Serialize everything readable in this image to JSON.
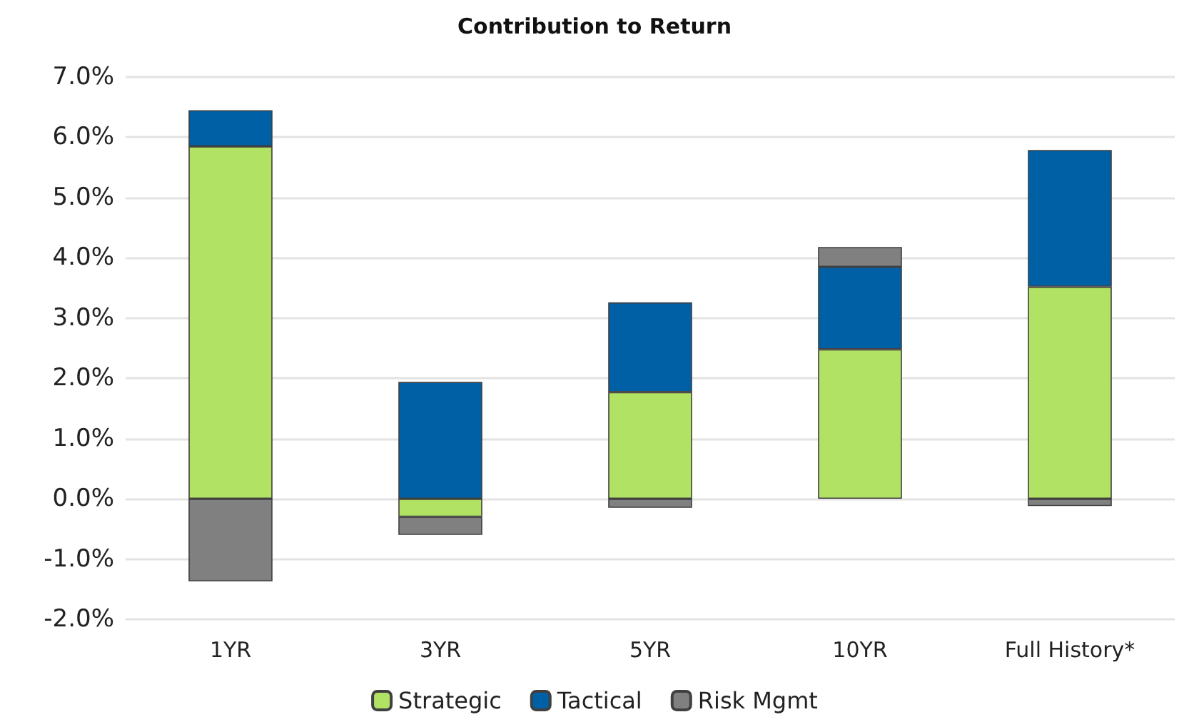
{
  "chart_data": {
    "type": "bar",
    "title": "Contribution to Return",
    "stacked": true,
    "grid": "y",
    "legend": "bottom",
    "categories": [
      "1YR",
      "3YR",
      "5YR",
      "10YR",
      "Full History*"
    ],
    "series": [
      {
        "name": "Strategic",
        "color": "#b2e263",
        "values": [
          5.85,
          -0.3,
          1.77,
          2.48,
          3.52
        ]
      },
      {
        "name": "Tactical",
        "color": "#0060a6",
        "values": [
          0.6,
          1.94,
          1.49,
          1.37,
          2.27
        ]
      },
      {
        "name": "Risk Mgmt",
        "color": "#808080",
        "values": [
          -1.37,
          -0.3,
          -0.15,
          0.33,
          -0.12
        ]
      }
    ],
    "ylim": [
      -2,
      7
    ],
    "yticks": [
      {
        "value": -2,
        "label": "-2.0%"
      },
      {
        "value": -1,
        "label": "-1.0%"
      },
      {
        "value": 0,
        "label": "0.0%"
      },
      {
        "value": 1,
        "label": "1.0%"
      },
      {
        "value": 2,
        "label": "2.0%"
      },
      {
        "value": 3,
        "label": "3.0%"
      },
      {
        "value": 4,
        "label": "4.0%"
      },
      {
        "value": 5,
        "label": "5.0%"
      },
      {
        "value": 6,
        "label": "6.0%"
      },
      {
        "value": 7,
        "label": "7.0%"
      }
    ]
  }
}
